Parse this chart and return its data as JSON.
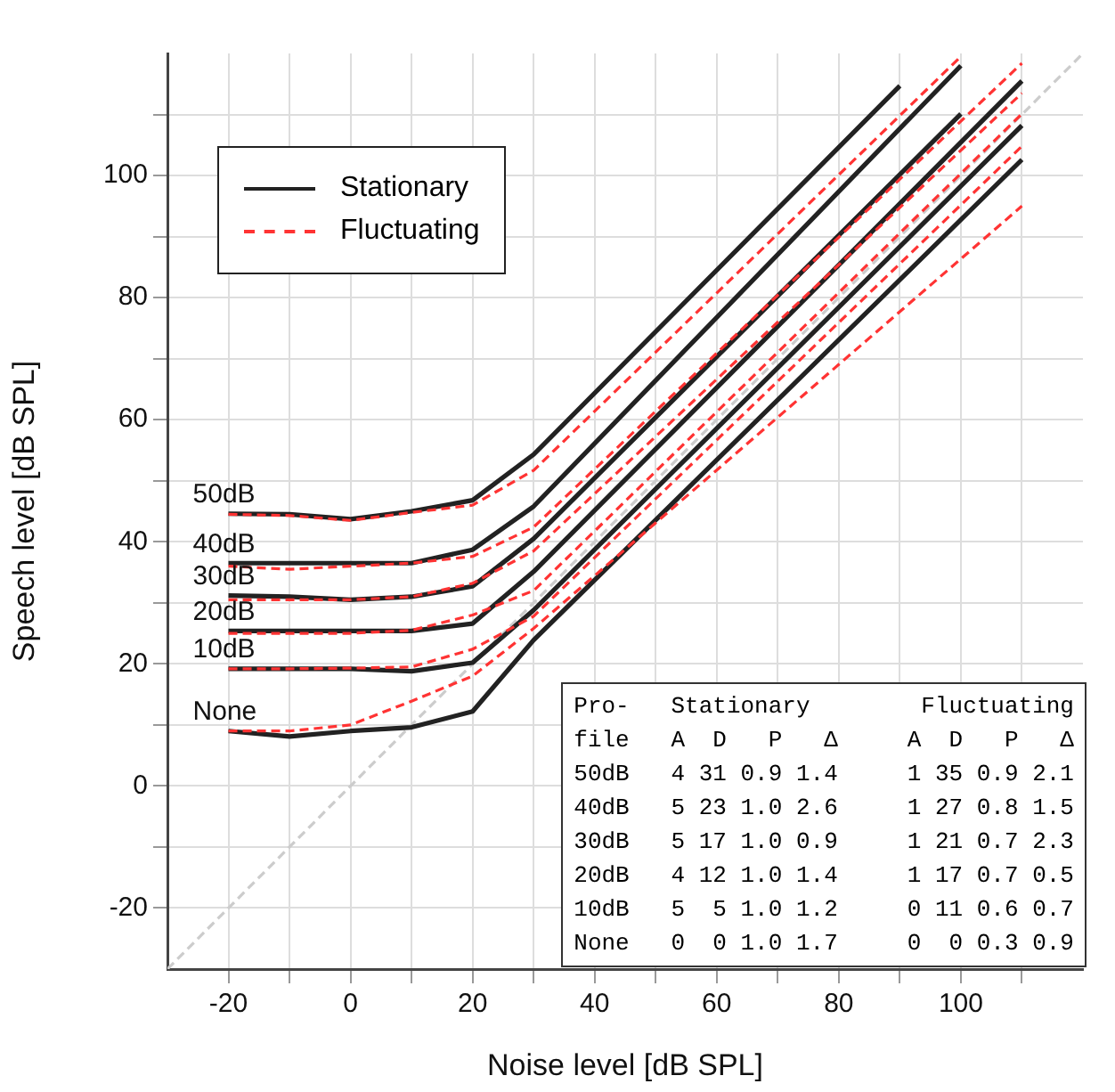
{
  "chart_data": {
    "type": "line",
    "xlabel": "Noise level [dB SPL]",
    "ylabel": "Speech level [dB SPL]",
    "xlim": [
      -30,
      120
    ],
    "ylim": [
      -30,
      120
    ],
    "xticks": [
      -20,
      {
        "value": -10,
        "label": null
      },
      0,
      {
        "value": 10,
        "label": null
      },
      20,
      {
        "value": 30,
        "label": null
      },
      40,
      {
        "value": 50,
        "label": null
      },
      60,
      {
        "value": 70,
        "label": null
      },
      80,
      {
        "value": 90,
        "label": null
      },
      100,
      {
        "value": 110,
        "label": null
      }
    ],
    "yticks": [
      -20,
      {
        "value": -10,
        "label": null
      },
      0,
      {
        "value": 10,
        "label": null
      },
      20,
      {
        "value": 30,
        "label": null
      },
      40,
      {
        "value": 50,
        "label": null
      },
      60,
      {
        "value": 70,
        "label": null
      },
      80,
      {
        "value": 90,
        "label": null
      },
      100,
      {
        "value": 110,
        "label": null
      }
    ],
    "grid": true,
    "legend": "top left",
    "marker": "none",
    "series": [
      {
        "color": "#cccccc",
        "line_style": "dashed",
        "x": [
          -30,
          120
        ],
        "values": [
          -30,
          120
        ]
      },
      {
        "name": "Stationary",
        "color": "#222222",
        "line_style": "solid",
        "x": [
          -20,
          -10,
          0,
          10,
          20,
          30,
          90
        ],
        "values": [
          44.6,
          44.5,
          43.7,
          45,
          46.8,
          54.3,
          114.7
        ]
      },
      {
        "name": "Fluctuating",
        "color": "#ff3333",
        "line_style": "dashed",
        "x": [
          -20,
          -10,
          0,
          10,
          20,
          30,
          100
        ],
        "values": [
          44.5,
          44.3,
          43.5,
          44.8,
          46,
          51.7,
          119.5
        ]
      },
      {
        "color": "#222222",
        "line_style": "solid",
        "x": [
          -20,
          -10,
          0,
          10,
          20,
          30,
          100
        ],
        "values": [
          36.5,
          36.5,
          36.5,
          36.5,
          38.7,
          45.8,
          118
        ]
      },
      {
        "color": "#ff3333",
        "line_style": "dashed",
        "x": [
          -20,
          -10,
          0,
          10,
          20,
          30,
          110
        ],
        "values": [
          36,
          35.5,
          36,
          36.5,
          37.6,
          42.4,
          118.4
        ]
      },
      {
        "color": "#222222",
        "line_style": "solid",
        "x": [
          -20,
          -10,
          0,
          10,
          20,
          30,
          100
        ],
        "values": [
          31.2,
          31,
          30.5,
          31,
          32.7,
          40.5,
          110.1
        ]
      },
      {
        "color": "#ff3333",
        "line_style": "dashed",
        "x": [
          -20,
          -10,
          0,
          10,
          20,
          30,
          110
        ],
        "values": [
          30.5,
          30.5,
          30.5,
          31,
          33.2,
          38.5,
          113.5
        ]
      },
      {
        "color": "#222222",
        "line_style": "solid",
        "x": [
          -20,
          -10,
          0,
          10,
          20,
          30,
          110
        ],
        "values": [
          25.4,
          25.4,
          25.4,
          25.4,
          26.6,
          35.1,
          115.5
        ]
      },
      {
        "color": "#ff3333",
        "line_style": "dashed",
        "x": [
          -20,
          -10,
          0,
          10,
          20,
          30,
          110
        ],
        "values": [
          25,
          25,
          25,
          25.5,
          28,
          32,
          110.1
        ]
      },
      {
        "color": "#222222",
        "line_style": "solid",
        "x": [
          -20,
          -10,
          0,
          10,
          20,
          30,
          110
        ],
        "values": [
          19.2,
          19.2,
          19.2,
          18.8,
          20.2,
          28.8,
          108.2
        ]
      },
      {
        "color": "#ff3333",
        "line_style": "dashed",
        "x": [
          -20,
          -10,
          0,
          10,
          20,
          30,
          110
        ],
        "values": [
          19.2,
          19.2,
          19.3,
          19.5,
          22.4,
          27.8,
          104.8
        ]
      },
      {
        "color": "#222222",
        "line_style": "solid",
        "x": [
          -20,
          -10,
          0,
          10,
          20,
          30,
          110
        ],
        "values": [
          9,
          8.1,
          9,
          9.6,
          12.2,
          23.9,
          102.6
        ]
      },
      {
        "color": "#ff3333",
        "line_style": "dashed",
        "x": [
          -20,
          -10,
          0,
          10,
          20,
          30,
          110
        ],
        "values": [
          9,
          9,
          10,
          13.9,
          18,
          25.8,
          95
        ]
      }
    ],
    "annotations": [
      "50dB",
      "40dB",
      "30dB",
      "20dB",
      "10dB",
      "None",
      "Pro-   Stationary        Fluctuating\nfile   A  D   P   Δ     A  D   P   Δ\n50dB   4 31 0.9 1.4     1 35 0.9 2.1\n40dB   5 23 1.0 2.6     1 27 0.8 1.5\n30dB   5 17 1.0 0.9     1 21 0.7 2.3\n20dB   4 12 1.0 1.4     1 17 0.7 0.5\n10dB   5  5 1.0 1.2     0 11 0.6 0.7\nNone   0  0 1.0 1.7     0  0 0.3 0.9"
    ]
  }
}
